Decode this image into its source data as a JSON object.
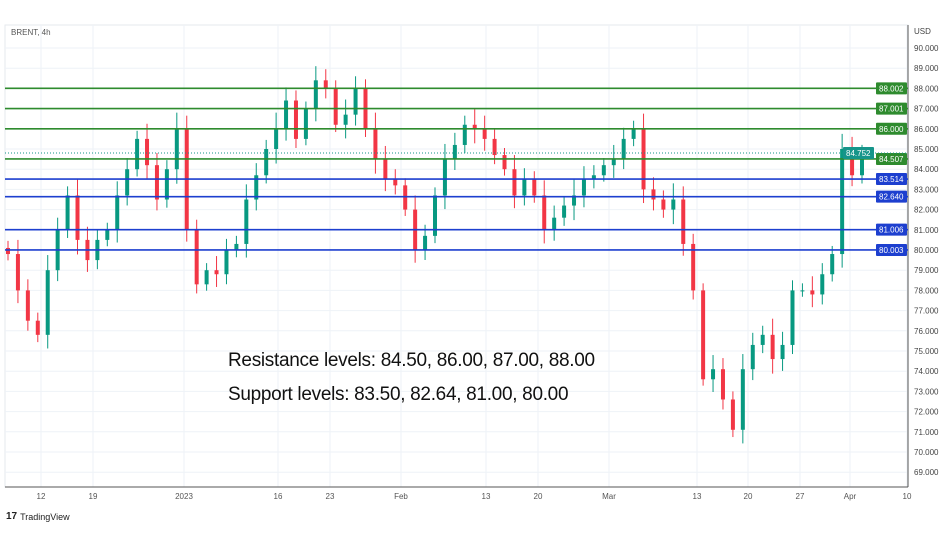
{
  "header": {
    "symbol_title": "BRENT, 4h",
    "currency": "USD"
  },
  "footer": {
    "brand": "TradingView",
    "brand_icon": "tradingview-logo-icon"
  },
  "annotations": {
    "resistance": "Resistance levels: 84.50, 86.00, 87.00, 88.00",
    "support": "Support levels: 83.50, 82.64, 81.00, 80.00"
  },
  "colors": {
    "up": "#089981",
    "down": "#f23645",
    "resistance": "#2e8b2e",
    "support": "#1d3fcf",
    "last_price": "#15958a",
    "grid": "#eef2f7"
  },
  "chart_data": {
    "type": "candlestick",
    "title": "BRENT, 4h",
    "ylabel": "USD",
    "ylim": [
      68.3,
      91.2
    ],
    "y_ticks": [
      90,
      89,
      88,
      87,
      86,
      85,
      84,
      83,
      82,
      81,
      80,
      79,
      78,
      77,
      76,
      75,
      74,
      73,
      72,
      71,
      70,
      69
    ],
    "x_ticks": [
      "12",
      "19",
      "2023",
      "16",
      "23",
      "Feb",
      "13",
      "20",
      "Mar",
      "13",
      "20",
      "27",
      "Apr",
      "10"
    ],
    "grid": true,
    "close": [
      79.8,
      78.0,
      76.5,
      75.8,
      79.0,
      81.0,
      82.7,
      80.5,
      79.5,
      80.5,
      81.0,
      82.7,
      84.0,
      85.5,
      84.2,
      82.5,
      84.0,
      86.0,
      81.0,
      78.3,
      79.0,
      78.8,
      80.0,
      80.3,
      82.5,
      83.7,
      85.0,
      86.0,
      87.4,
      85.5,
      87.0,
      88.4,
      88.0,
      86.2,
      86.7,
      88.0,
      86.0,
      84.5,
      83.5,
      83.2,
      82.0,
      80.0,
      80.7,
      82.7,
      84.5,
      85.2,
      86.2,
      86.0,
      85.5,
      84.7,
      84.0,
      82.7,
      83.5,
      82.7,
      81.0,
      81.6,
      82.2,
      82.7,
      83.5,
      83.7,
      84.2,
      84.5,
      85.5,
      86.0,
      83.0,
      82.5,
      82.0,
      82.5,
      80.3,
      78.0,
      73.6,
      74.1,
      72.6,
      71.1,
      74.1,
      75.3,
      75.8,
      74.6,
      75.3,
      78.0,
      78.0,
      77.8,
      78.8,
      79.8,
      85.0,
      83.7,
      84.752
    ],
    "horizontal_levels": [
      {
        "value": 88.002,
        "label": "88.002",
        "kind": "resistance"
      },
      {
        "value": 87.001,
        "label": "87.001",
        "kind": "resistance"
      },
      {
        "value": 86.0,
        "label": "86.000",
        "kind": "resistance"
      },
      {
        "value": 84.507,
        "label": "84.507",
        "kind": "resistance"
      },
      {
        "value": 83.514,
        "label": "83.514",
        "kind": "support"
      },
      {
        "value": 82.64,
        "label": "82.640",
        "kind": "support"
      },
      {
        "value": 81.006,
        "label": "81.006",
        "kind": "support"
      },
      {
        "value": 80.003,
        "label": "80.003",
        "kind": "support"
      }
    ],
    "last_price": {
      "value": 84.752,
      "label": "84.752"
    }
  }
}
